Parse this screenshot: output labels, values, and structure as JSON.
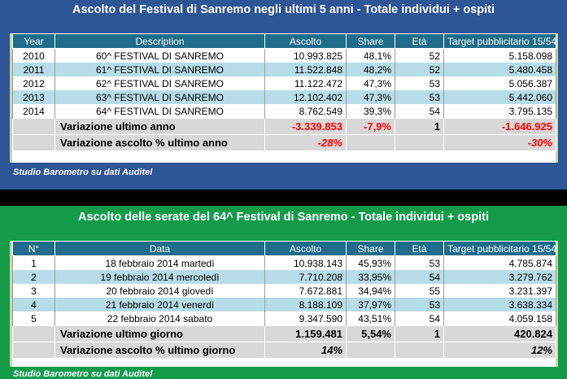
{
  "table1": {
    "title": "Ascolto del Festival di Sanremo negli ultimi 5 anni - Totale individui + ospiti",
    "headers": [
      "Year",
      "Description",
      "Ascolto",
      "Share",
      "Età",
      "Target pubblicitario 15/54"
    ],
    "rows": [
      [
        "2010",
        "60^ FESTIVAL DI SANREMO",
        "10.993.825",
        "48,1%",
        "52",
        "5.158.098"
      ],
      [
        "2011",
        "61^ FESTIVAL DI SANREMO",
        "11.522.848",
        "48,2%",
        "52",
        "5.480.458"
      ],
      [
        "2012",
        "62^ FESTIVAL DI SANREMO",
        "11.122.472",
        "47,3%",
        "53",
        "5.056.387"
      ],
      [
        "2013",
        "63^ FESTIVAL DI SANREMO",
        "12.102.402",
        "47,3%",
        "53",
        "5.442.060"
      ],
      [
        "2014",
        "64^ FESTIVAL DI SANREMO",
        "8.762.549",
        "39,3%",
        "54",
        "3.795.135"
      ]
    ],
    "variation": {
      "label": "Variazione ultimo anno",
      "ascolto": "-3.339.853",
      "share": "-7,9%",
      "eta": "1",
      "target": "-1.646.925"
    },
    "variation_pct": {
      "label": "Variazione ascolto % ultimo anno",
      "ascolto": "-28%",
      "target": "-30%"
    },
    "source": "Studio Barometro su dati Auditel"
  },
  "table2": {
    "title": "Ascolto delle serate del 64^ Festival di Sanremo - Totale individui + ospiti",
    "headers": [
      "N°",
      "Data",
      "Ascolto",
      "Share",
      "Età",
      "Target pubblicitario 15/54"
    ],
    "rows": [
      [
        "1",
        "18 febbraio 2014 martedì",
        "10.938.143",
        "45,93%",
        "53",
        "4.785.874"
      ],
      [
        "2",
        "19 febbraio 2014 mercoledì",
        "7.710.208",
        "33,95%",
        "54",
        "3.279.762"
      ],
      [
        "3",
        "20 febbraio 2014 giovedì",
        "7.672.881",
        "34,94%",
        "55",
        "3.231.397"
      ],
      [
        "4",
        "21 febbraio 2014 venerdì",
        "8.188.109",
        "37,97%",
        "53",
        "3.638.334"
      ],
      [
        "5",
        "22 febbraio 2014 sabato",
        "9.347.590",
        "43,51%",
        "54",
        "4.059.158"
      ]
    ],
    "variation": {
      "label": "Variazione ultimo giorno",
      "ascolto": "1.159.481",
      "share": "5,54%",
      "eta": "1",
      "target": "420.824"
    },
    "variation_pct": {
      "label": "Variazione ascolto % ultimo giorno",
      "ascolto": "14%",
      "target": "12%"
    },
    "source": "Studio Barometro su dati Auditel"
  },
  "colors": {
    "panel1_bg": "#2e5596",
    "panel2_bg": "#139b4a",
    "header_bg": "#1f6d8a",
    "row_alt": "#b7dde8",
    "summary_bg": "#d8d8d8",
    "negative": "#ff0000"
  }
}
